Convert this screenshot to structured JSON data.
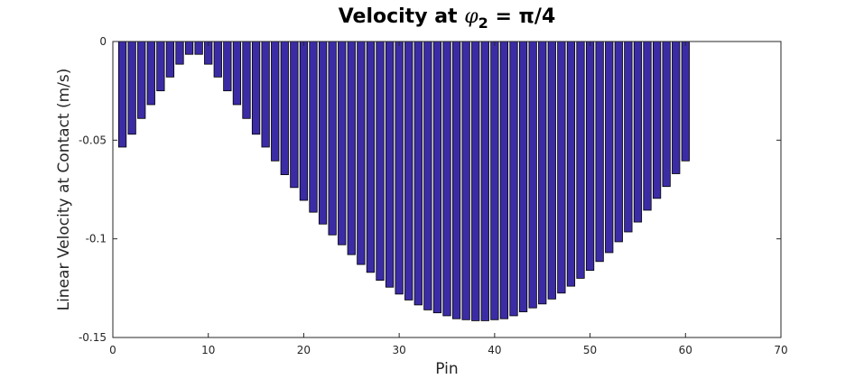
{
  "chart_data": {
    "type": "bar",
    "title_prefix": "Velocity at ",
    "title_symbol": "φ",
    "title_subscript": "2",
    "title_suffix": " = π/4",
    "xlabel": "Pin",
    "ylabel": "Linear Velocity at Contact (m/s)",
    "xlim": [
      0,
      70
    ],
    "ylim": [
      -0.15,
      0
    ],
    "xticks": [
      0,
      10,
      20,
      30,
      40,
      50,
      60,
      70
    ],
    "xtick_labels": [
      "0",
      "10",
      "20",
      "30",
      "40",
      "50",
      "60",
      "70"
    ],
    "yticks": [
      0,
      -0.05,
      -0.1,
      -0.15
    ],
    "ytick_labels": [
      "0",
      "-0.05",
      "-0.1",
      "-0.15"
    ],
    "grid": false,
    "bar_color": "#3b2ca6",
    "x": [
      1,
      2,
      3,
      4,
      5,
      6,
      7,
      8,
      9,
      10,
      11,
      12,
      13,
      14,
      15,
      16,
      17,
      18,
      19,
      20,
      21,
      22,
      23,
      24,
      25,
      26,
      27,
      28,
      29,
      30,
      31,
      32,
      33,
      34,
      35,
      36,
      37,
      38,
      39,
      40,
      41,
      42,
      43,
      44,
      45,
      46,
      47,
      48,
      49,
      50,
      51,
      52,
      53,
      54,
      55,
      56,
      57,
      58,
      59,
      60
    ],
    "values": [
      -0.0535,
      -0.047,
      -0.039,
      -0.032,
      -0.025,
      -0.018,
      -0.0115,
      -0.0065,
      -0.0065,
      -0.0115,
      -0.018,
      -0.025,
      -0.032,
      -0.039,
      -0.047,
      -0.0535,
      -0.0605,
      -0.0675,
      -0.074,
      -0.0805,
      -0.0865,
      -0.0925,
      -0.098,
      -0.103,
      -0.108,
      -0.113,
      -0.117,
      -0.121,
      -0.1245,
      -0.128,
      -0.131,
      -0.1335,
      -0.136,
      -0.1375,
      -0.139,
      -0.1405,
      -0.141,
      -0.1415,
      -0.1415,
      -0.141,
      -0.1405,
      -0.139,
      -0.137,
      -0.135,
      -0.133,
      -0.1305,
      -0.1275,
      -0.124,
      -0.12,
      -0.116,
      -0.1115,
      -0.107,
      -0.1015,
      -0.0965,
      -0.0915,
      -0.0855,
      -0.0795,
      -0.0735,
      -0.067,
      -0.0605
    ]
  }
}
